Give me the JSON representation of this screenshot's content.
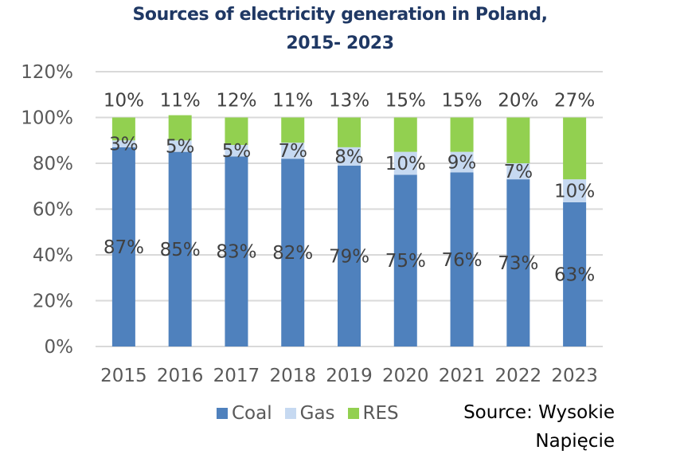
{
  "chart_data": {
    "type": "bar",
    "stacked": true,
    "title": "Sources of electricity generation in Poland, 2015- 2023",
    "title_lines": [
      "Sources of electricity generation in Poland,",
      "2015- 2023"
    ],
    "xlabel": "",
    "ylabel": "",
    "categories": [
      "2015",
      "2016",
      "2017",
      "2018",
      "2019",
      "2020",
      "2021",
      "2022",
      "2023"
    ],
    "series": [
      {
        "name": "Coal",
        "color": "#4f81bd",
        "values": [
          87,
          85,
          83,
          82,
          79,
          75,
          76,
          73,
          63
        ],
        "labels": [
          "87%",
          "85%",
          "83%",
          "82%",
          "79%",
          "75%",
          "76%",
          "73%",
          "63%"
        ]
      },
      {
        "name": "Gas",
        "color": "#c6d9f1",
        "values": [
          3,
          5,
          5,
          7,
          8,
          10,
          9,
          7,
          10
        ],
        "labels": [
          "3%",
          "5%",
          "5%",
          "7%",
          "8%",
          "10%",
          "9%",
          "7%",
          "10%"
        ]
      },
      {
        "name": "RES",
        "color": "#92d050",
        "values": [
          10,
          11,
          12,
          11,
          13,
          15,
          15,
          20,
          27
        ],
        "labels": [
          "10%",
          "11%",
          "12%",
          "11%",
          "13%",
          "15%",
          "15%",
          "20%",
          "27%"
        ]
      }
    ],
    "ylim": [
      0,
      120
    ],
    "yticks": [
      0,
      20,
      40,
      60,
      80,
      100,
      120
    ],
    "ytick_labels": [
      "0%",
      "20%",
      "40%",
      "60%",
      "80%",
      "100%",
      "120%"
    ],
    "grid": true,
    "legend_position": "bottom",
    "gridline_color": "#d9d9d9"
  },
  "source_lines": [
    "Source: Wysokie",
    "Napięcie"
  ]
}
